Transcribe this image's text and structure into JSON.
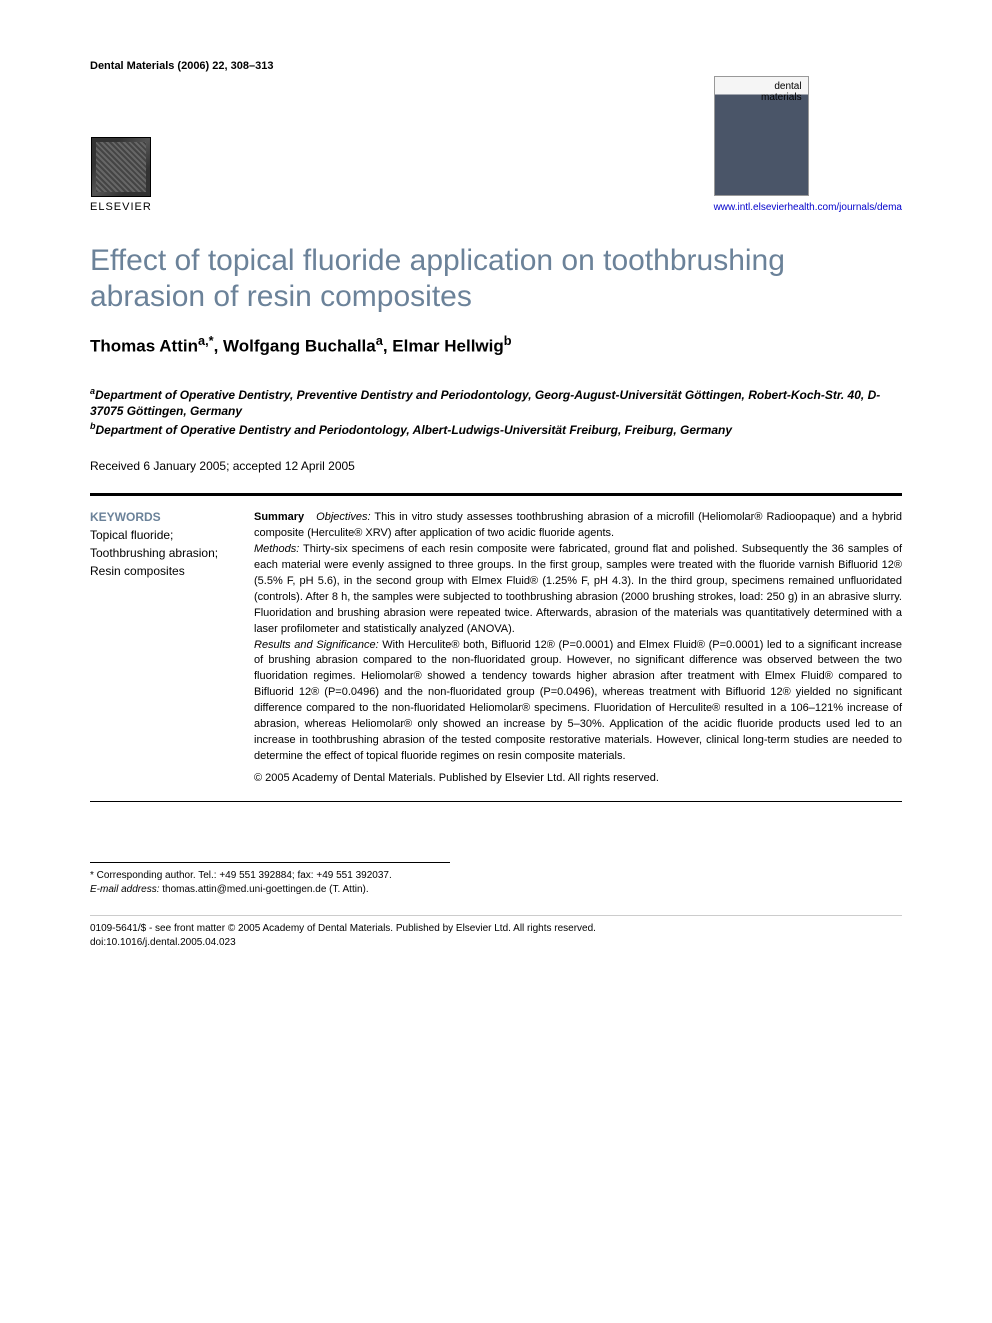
{
  "header": {
    "journal_ref": "Dental Materials (2006) 22, 308–313",
    "publisher": "ELSEVIER",
    "cover_line1": "dental",
    "cover_line2": "materials",
    "url": "www.intl.elsevierhealth.com/journals/dema"
  },
  "title": "Effect of topical fluoride application on toothbrushing abrasion of resin composites",
  "authors_html": "Thomas Attin<sup>a,*</sup>, Wolfgang Buchalla<sup>a</sup>, Elmar Hellwig<sup>b</sup>",
  "affiliations": [
    "<sup>a</sup>Department of Operative Dentistry, Preventive Dentistry and Periodontology, Georg-August-Universität Göttingen, Robert-Koch-Str. 40, D-37075 Göttingen, Germany",
    "<sup>b</sup>Department of Operative Dentistry and Periodontology, Albert-Ludwigs-Universität Freiburg, Freiburg, Germany"
  ],
  "dates": "Received 6 January 2005; accepted 12 April 2005",
  "keywords": {
    "heading": "KEYWORDS",
    "items": [
      "Topical fluoride;",
      "Toothbrushing abrasion;",
      "Resin composites"
    ]
  },
  "abstract": {
    "summary_label": "Summary",
    "objectives_label": "Objectives:",
    "objectives": " This in vitro study assesses toothbrushing abrasion of a microfill (Heliomolar® Radioopaque) and a hybrid composite (Herculite® XRV) after application of two acidic fluoride agents.",
    "methods_label": "Methods:",
    "methods": "  Thirty-six specimens of each resin composite were fabricated, ground flat and polished. Subsequently the 36 samples of each material were evenly assigned to three groups. In the first group, samples were treated with the fluoride varnish Bifluorid 12® (5.5% F, pH 5.6), in the second group with Elmex Fluid® (1.25% F, pH 4.3). In the third group, specimens remained unfluoridated (controls). After 8 h, the samples were subjected to toothbrushing abrasion (2000 brushing strokes, load: 250 g) in an abrasive slurry. Fluoridation and brushing abrasion were repeated twice. Afterwards, abrasion of the materials was quantitatively determined with a laser profilometer and statistically analyzed (ANOVA).",
    "results_label": "Results and Significance:",
    "results": "  With Herculite® both, Bifluorid 12® (P=0.0001) and Elmex Fluid® (P=0.0001) led to a significant increase of brushing abrasion compared to the non-fluoridated group. However, no significant difference was observed between the two fluoridation regimes. Heliomolar® showed a tendency towards higher abrasion after treatment with Elmex Fluid® compared to Bifluorid 12® (P=0.0496) and the non-fluoridated group (P=0.0496), whereas treatment with Bifluorid 12® yielded no significant difference compared to the non-fluoridated Heliomolar® specimens. Fluoridation of Herculite® resulted in a 106–121% increase of abrasion, whereas Heliomolar® only showed an increase by 5–30%. Application of the acidic fluoride products used led to an increase in toothbrushing abrasion of the tested composite restorative materials. However, clinical long-term studies are needed to determine the effect of topical fluoride regimes on resin composite materials.",
    "copyright": "© 2005 Academy of Dental Materials. Published by Elsevier Ltd. All rights reserved."
  },
  "footnotes": {
    "corresponding": "* Corresponding author. Tel.: +49 551 392884; fax: +49 551 392037.",
    "email_label": "E-mail address:",
    "email": " thomas.attin@med.uni-goettingen.de (T. Attin)."
  },
  "bottom": {
    "line1": "0109-5641/$ - see front matter © 2005 Academy of Dental Materials. Published by Elsevier Ltd. All rights reserved.",
    "line2": "doi:10.1016/j.dental.2005.04.023"
  }
}
